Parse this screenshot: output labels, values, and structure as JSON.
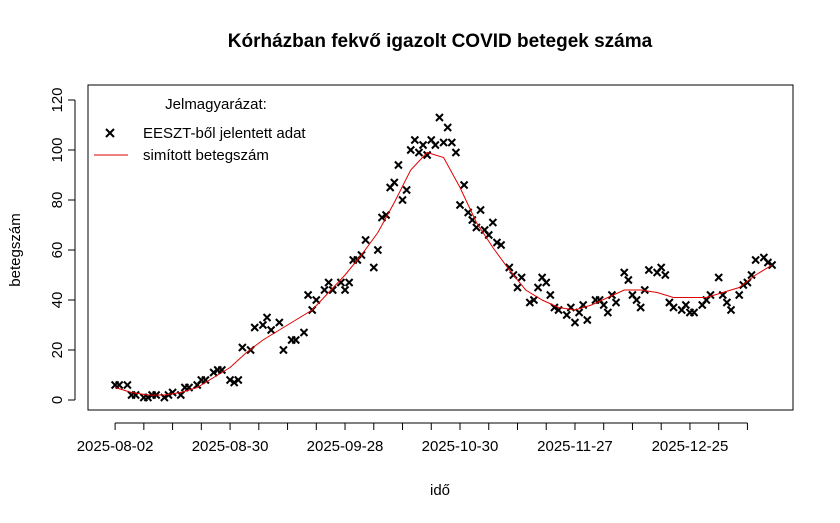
{
  "chart_data": {
    "type": "scatter",
    "title": "Kórházban fekvő igazolt COVID betegek száma",
    "xlabel": "idő",
    "ylabel": "betegszám",
    "legend_title": "Jelmagyarázat:",
    "legend": "top-left",
    "xlim": [
      -6.6,
      165.1
    ],
    "ylim": [
      -4,
      126
    ],
    "xticks": [
      {
        "value": 0,
        "label": "2025-08-02"
      },
      {
        "value": 28,
        "label": "2025-08-30"
      },
      {
        "value": 56,
        "label": "2025-09-28"
      },
      {
        "value": 84,
        "label": "2025-10-30"
      },
      {
        "value": 112,
        "label": "2025-11-27"
      },
      {
        "value": 140,
        "label": "2025-12-25"
      }
    ],
    "xminor_ticks": [
      7,
      14,
      21,
      35,
      42,
      49,
      63,
      70,
      77,
      91,
      98,
      105,
      119,
      126,
      133,
      147,
      154
    ],
    "yticks": [
      0,
      20,
      40,
      60,
      80,
      100,
      120
    ],
    "series": [
      {
        "name": "EESZT-ből jelentett adat",
        "color": "#000000",
        "marker": "x",
        "x": [
          0,
          1,
          3,
          4,
          5,
          7,
          8,
          9,
          10,
          12,
          13,
          14,
          16,
          17,
          18,
          20,
          21,
          22,
          24,
          25,
          26,
          28,
          29,
          30,
          31,
          33,
          34,
          36,
          37,
          38,
          40,
          41,
          43,
          44,
          46,
          47,
          48,
          49,
          51,
          52,
          53,
          55,
          56,
          57,
          58,
          59,
          60,
          61,
          63,
          64,
          65,
          66,
          67,
          68,
          69,
          70,
          71,
          72,
          73,
          74,
          75,
          76,
          77,
          78,
          79,
          80,
          81,
          82,
          83,
          84,
          85,
          86,
          87,
          88,
          89,
          90,
          91,
          92,
          93,
          94,
          96,
          97,
          98,
          99,
          101,
          102,
          103,
          104,
          105,
          106,
          107,
          108,
          110,
          111,
          112,
          113,
          114,
          115,
          117,
          118,
          119,
          120,
          121,
          122,
          124,
          125,
          126,
          127,
          128,
          129,
          130,
          132,
          133,
          134,
          135,
          136,
          138,
          139,
          140,
          141,
          143,
          144,
          145,
          147,
          148,
          149,
          150,
          152,
          153,
          154,
          155,
          156,
          158,
          159,
          160
        ],
        "values": [
          6,
          6,
          6,
          2,
          2,
          1,
          1,
          2,
          2,
          1,
          2,
          3,
          2,
          5,
          5,
          6,
          8,
          8,
          11,
          12,
          12,
          8,
          7,
          8,
          21,
          20,
          29,
          30,
          33,
          28,
          31,
          20,
          24,
          24,
          27,
          42,
          36,
          40,
          44,
          47,
          44,
          47,
          44,
          47,
          56,
          56,
          58,
          64,
          53,
          60,
          73,
          74,
          85,
          87,
          94,
          80,
          84,
          100,
          104,
          99,
          102,
          98,
          104,
          102,
          113,
          103,
          109,
          103,
          99,
          78,
          86,
          75,
          72,
          69,
          76,
          68,
          66,
          71,
          63,
          62,
          53,
          50,
          45,
          49,
          39,
          40,
          45,
          49,
          47,
          42,
          37,
          36,
          34,
          37,
          31,
          35,
          38,
          32,
          40,
          40,
          38,
          35,
          42,
          39,
          51,
          48,
          42,
          40,
          37,
          44,
          52,
          51,
          53,
          50,
          39,
          37,
          36,
          38,
          35,
          35,
          38,
          40,
          42,
          49,
          42,
          39,
          36,
          42,
          46,
          47,
          50,
          56,
          57,
          55,
          54
        ]
      },
      {
        "name": "simított betegszám",
        "color": "#e00000",
        "marker": "line",
        "x": [
          0,
          4,
          8,
          12,
          16,
          20,
          24,
          28,
          32,
          36,
          40,
          44,
          48,
          52,
          56,
          60,
          64,
          68,
          72,
          76,
          80,
          84,
          88,
          92,
          96,
          100,
          104,
          108,
          112,
          116,
          120,
          124,
          128,
          132,
          136,
          140,
          144,
          148,
          152,
          156,
          160
        ],
        "values": [
          5,
          3,
          2,
          2,
          3,
          5,
          9,
          13,
          19,
          24,
          28,
          32,
          36,
          43,
          50,
          58,
          67,
          79,
          92,
          99,
          97,
          85,
          71,
          61,
          52,
          44,
          40,
          37,
          36,
          38,
          41,
          44,
          44,
          43,
          41,
          41,
          41,
          43,
          45,
          50,
          54
        ]
      }
    ]
  }
}
